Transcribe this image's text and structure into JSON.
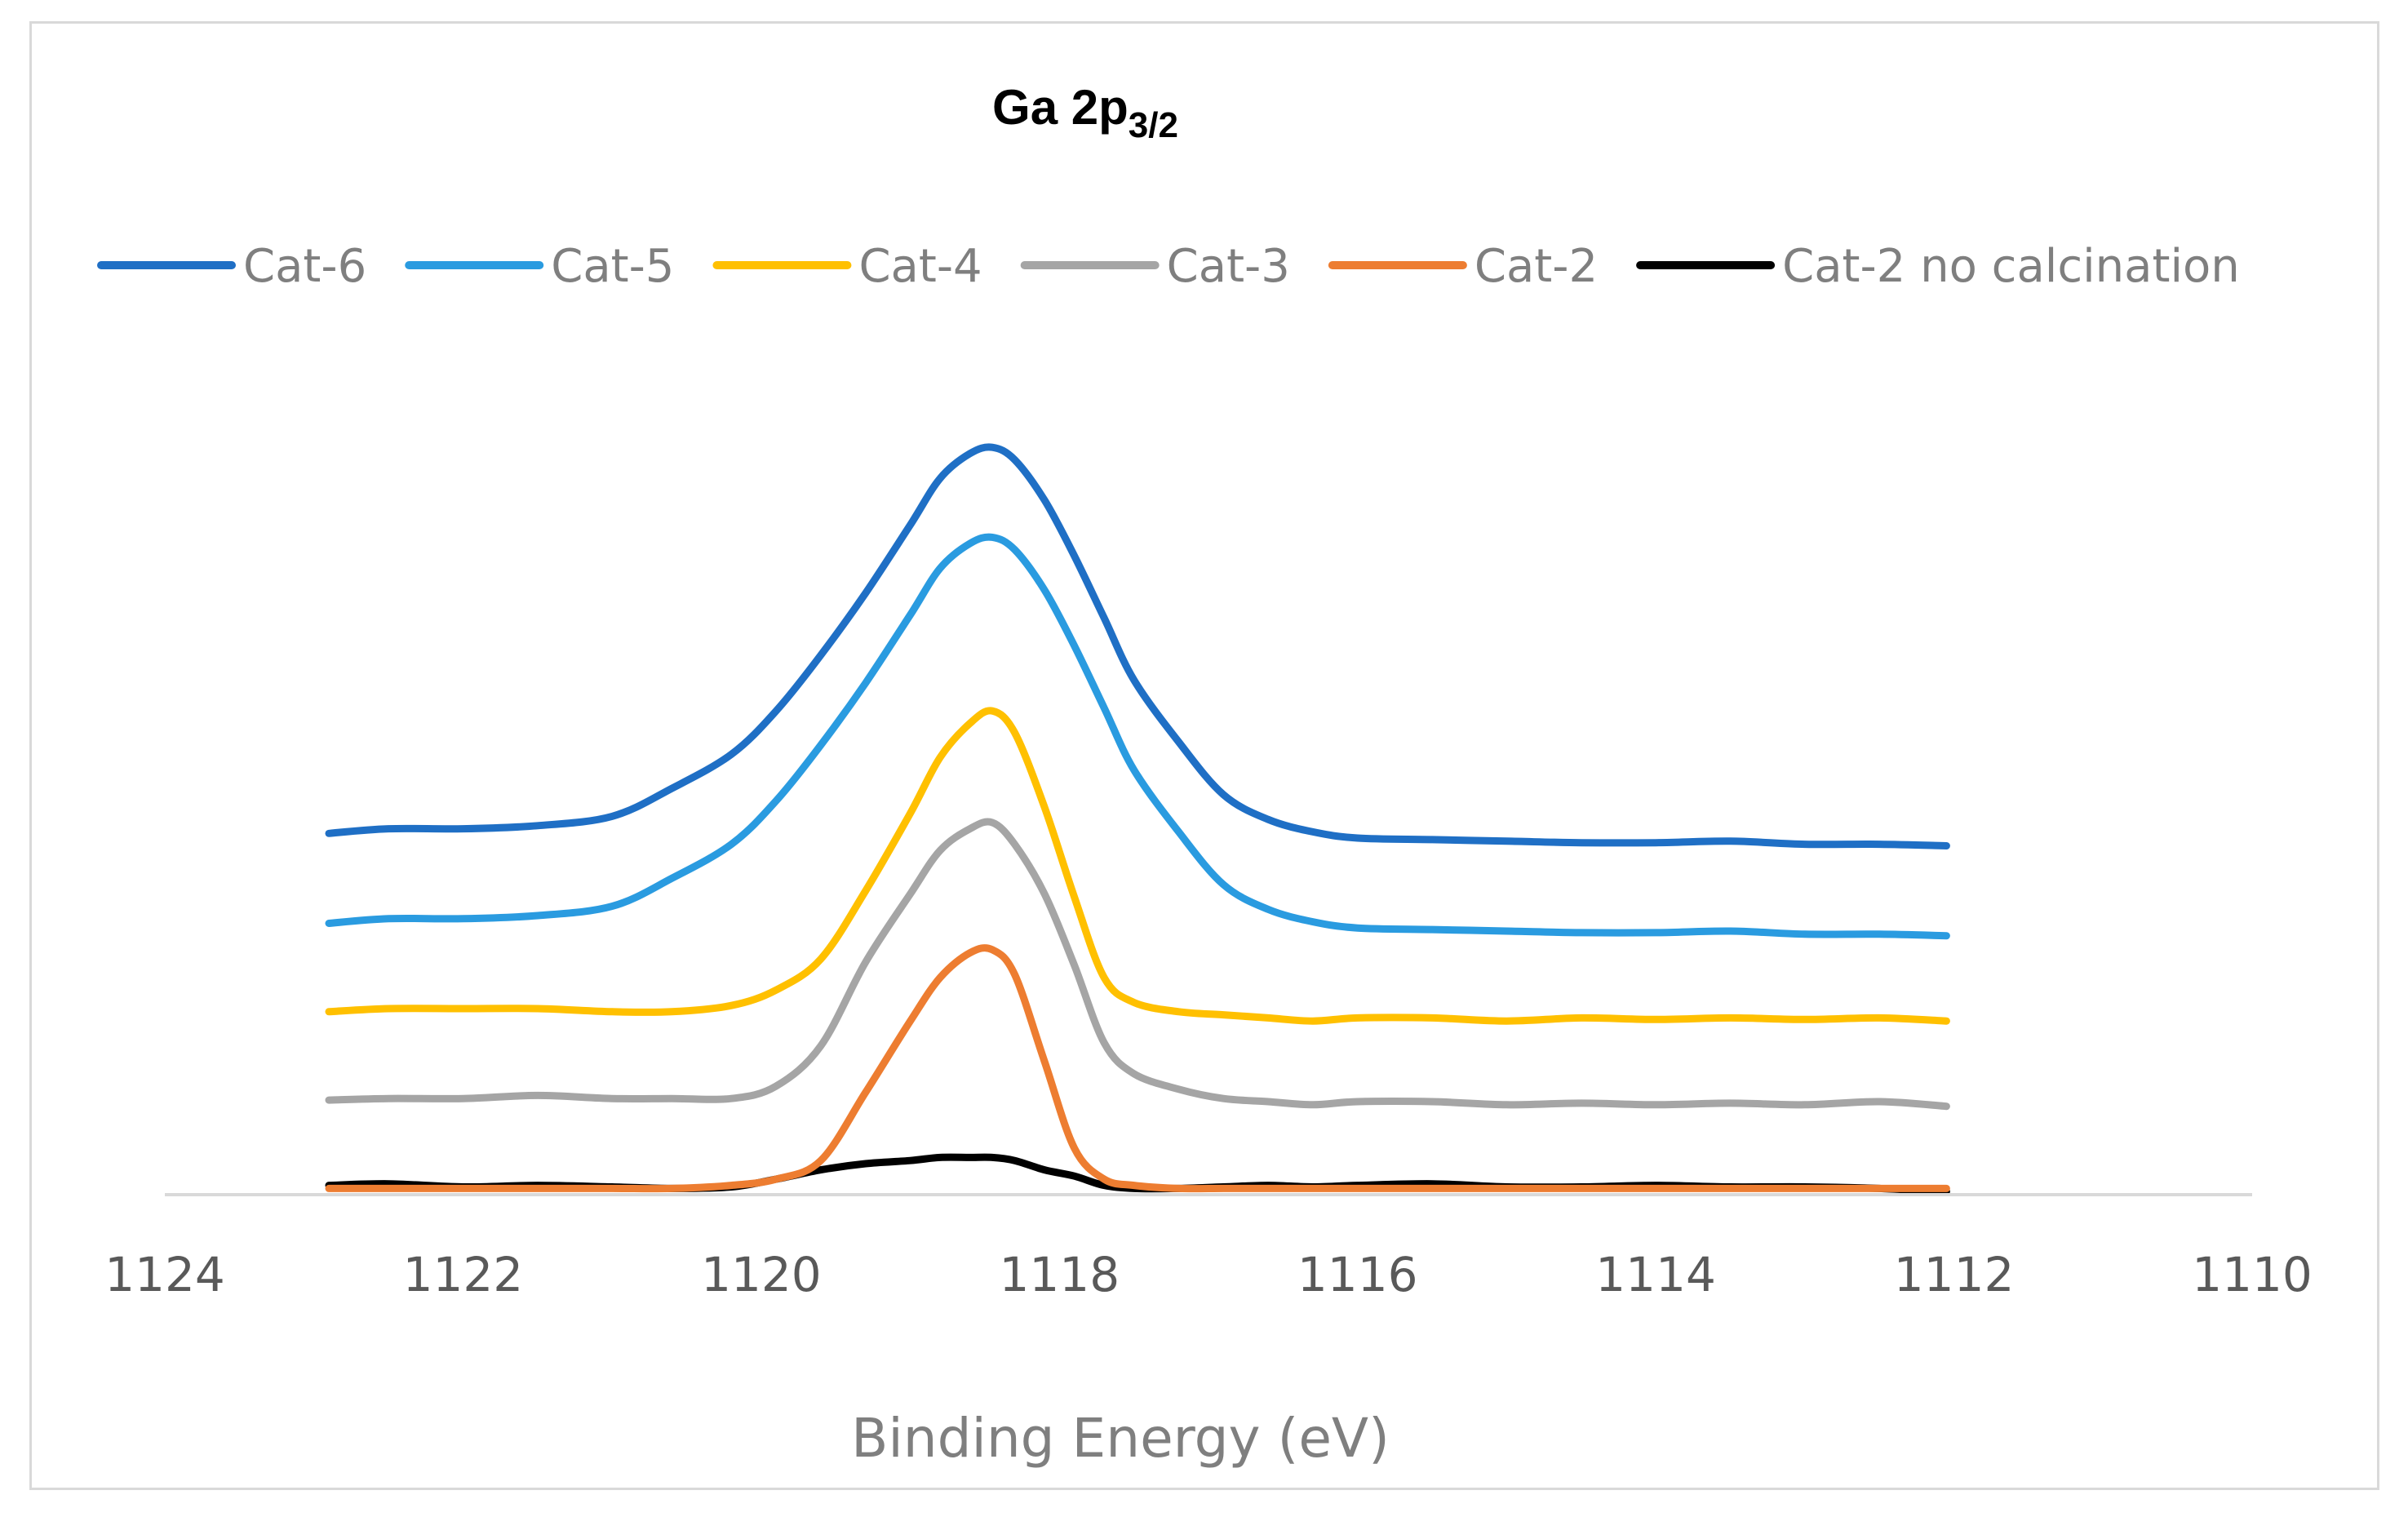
{
  "chart_data": {
    "type": "line",
    "title": {
      "main": "Ga 2p",
      "subscript": "3/2"
    },
    "xlabel": "Binding Energy (eV)",
    "ylabel": "",
    "xlim": [
      1124,
      1110
    ],
    "x_reversed": true,
    "xticks": [
      "1124",
      "1122",
      "1120",
      "1118",
      "1116",
      "1114",
      "1112",
      "1110"
    ],
    "y_axis_visible": false,
    "ylim": [
      0,
      520
    ],
    "grid": false,
    "legend_position": "top",
    "x": [
      1122.9,
      1122.5,
      1122.0,
      1121.5,
      1121.0,
      1120.6,
      1120.2,
      1119.9,
      1119.6,
      1119.3,
      1119.0,
      1118.8,
      1118.6,
      1118.45,
      1118.3,
      1118.1,
      1117.9,
      1117.7,
      1117.5,
      1117.2,
      1116.9,
      1116.6,
      1116.3,
      1116.0,
      1115.5,
      1115.0,
      1114.5,
      1114.0,
      1113.5,
      1113.0,
      1112.5,
      1112.05
    ],
    "series": [
      {
        "name": "Cat-6",
        "color": "#1f6fc5",
        "width": 9,
        "values": [
          233,
          236,
          236,
          238,
          244,
          262,
          284,
          312,
          348,
          388,
          432,
          462,
          478,
          482,
          474,
          448,
          412,
          372,
          332,
          292,
          258,
          242,
          234,
          230,
          229,
          228,
          227,
          227,
          228,
          226,
          226,
          225
        ]
      },
      {
        "name": "Cat-5",
        "color": "#2a9be0",
        "width": 9,
        "values": [
          175,
          178,
          178,
          180,
          186,
          204,
          226,
          254,
          290,
          330,
          374,
          404,
          420,
          424,
          416,
          390,
          354,
          314,
          274,
          234,
          200,
          184,
          176,
          172,
          171,
          170,
          169,
          169,
          170,
          168,
          168,
          167
        ]
      },
      {
        "name": "Cat-4",
        "color": "#ffc000",
        "width": 9,
        "values": [
          118,
          120,
          120,
          120,
          118,
          118,
          122,
          132,
          152,
          196,
          246,
          282,
          304,
          312,
          298,
          250,
          192,
          140,
          124,
          118,
          116,
          114,
          112,
          114,
          114,
          112,
          114,
          113,
          114,
          113,
          114,
          112
        ]
      },
      {
        "name": "Cat-3",
        "color": "#a5a5a5",
        "width": 9,
        "values": [
          61,
          62,
          62,
          64,
          62,
          62,
          62,
          70,
          96,
          150,
          194,
          222,
          236,
          240,
          226,
          194,
          148,
          98,
          78,
          68,
          62,
          60,
          58,
          60,
          60,
          58,
          59,
          58,
          59,
          58,
          60,
          57
        ]
      },
      {
        "name": "Cat-2",
        "color": "#ed7d31",
        "width": 9,
        "values": [
          4,
          4,
          4,
          4,
          4,
          4,
          6,
          10,
          22,
          66,
          112,
          140,
          156,
          158,
          142,
          86,
          30,
          10,
          6,
          4,
          4,
          4,
          4,
          4,
          4,
          4,
          4,
          4,
          4,
          4,
          4,
          4
        ]
      },
      {
        "name": "Cat-2 no calcination",
        "color": "#000000",
        "width": 9,
        "values": [
          6,
          7,
          5,
          6,
          5,
          4,
          5,
          10,
          16,
          20,
          22,
          24,
          24,
          24,
          22,
          16,
          12,
          6,
          4,
          4,
          5,
          6,
          5,
          6,
          7,
          5,
          5,
          6,
          5,
          5,
          4,
          2
        ]
      }
    ]
  }
}
